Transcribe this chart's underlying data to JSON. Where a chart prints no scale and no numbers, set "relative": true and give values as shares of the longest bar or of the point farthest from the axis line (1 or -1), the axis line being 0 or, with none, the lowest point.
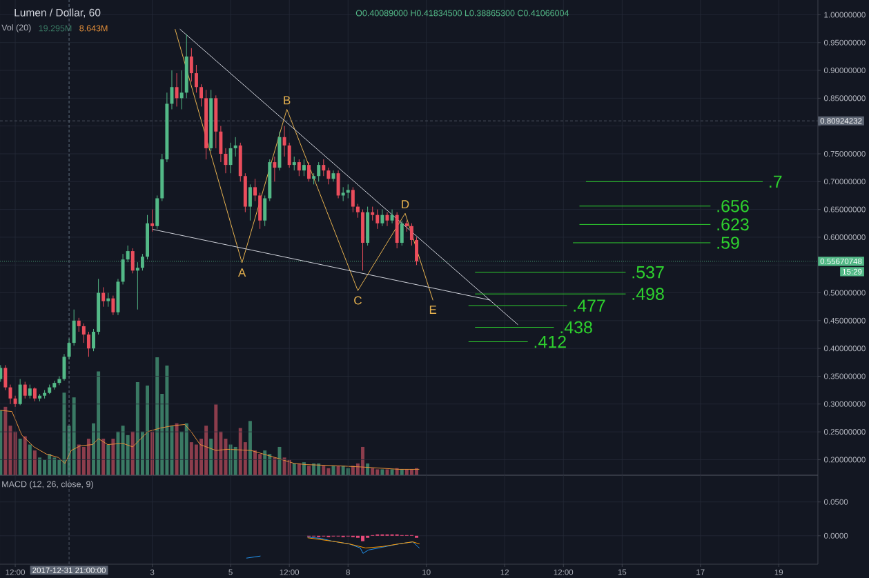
{
  "chart_data": [
    {
      "type": "candlestick",
      "title": "Lumen / Dollar, 60",
      "subtitle": "O0.40089000 H0.41834500 L0.38865300 C0.41066004",
      "x": [
        "2017-12-30T03:00",
        "2017-12-30T06:00",
        "2017-12-30T09:00",
        "2017-12-30T12:00",
        "2017-12-30T15:00",
        "2017-12-30T18:00",
        "2017-12-30T21:00",
        "2017-12-31T00:00",
        "2017-12-31T03:00",
        "2017-12-31T06:00",
        "2017-12-31T09:00",
        "2017-12-31T12:00",
        "2017-12-31T15:00",
        "2017-12-31T18:00",
        "2017-12-31T21:00",
        "2018-01-01T00:00",
        "2018-01-01T03:00",
        "2018-01-01T06:00",
        "2018-01-01T09:00",
        "2018-01-01T12:00",
        "2018-01-01T15:00",
        "2018-01-01T18:00",
        "2018-01-01T21:00",
        "2018-01-02T00:00",
        "2018-01-02T03:00",
        "2018-01-02T06:00",
        "2018-01-02T09:00",
        "2018-01-02T12:00",
        "2018-01-02T15:00",
        "2018-01-02T18:00",
        "2018-01-02T21:00",
        "2018-01-03T00:00",
        "2018-01-03T03:00",
        "2018-01-03T06:00",
        "2018-01-03T09:00",
        "2018-01-03T12:00",
        "2018-01-03T15:00",
        "2018-01-03T18:00",
        "2018-01-03T21:00",
        "2018-01-04T00:00",
        "2018-01-04T03:00",
        "2018-01-04T06:00",
        "2018-01-04T09:00",
        "2018-01-04T12:00",
        "2018-01-04T15:00",
        "2018-01-04T18:00",
        "2018-01-04T21:00",
        "2018-01-05T00:00",
        "2018-01-05T03:00",
        "2018-01-05T06:00",
        "2018-01-05T09:00",
        "2018-01-05T12:00",
        "2018-01-05T15:00",
        "2018-01-05T18:00",
        "2018-01-05T21:00",
        "2018-01-06T00:00",
        "2018-01-06T03:00",
        "2018-01-06T06:00",
        "2018-01-06T09:00",
        "2018-01-06T12:00",
        "2018-01-06T15:00",
        "2018-01-06T18:00",
        "2018-01-06T21:00",
        "2018-01-07T00:00",
        "2018-01-07T03:00",
        "2018-01-07T06:00",
        "2018-01-07T09:00",
        "2018-01-07T12:00",
        "2018-01-07T15:00",
        "2018-01-07T18:00",
        "2018-01-07T21:00",
        "2018-01-08T00:00",
        "2018-01-08T03:00",
        "2018-01-08T06:00",
        "2018-01-08T09:00",
        "2018-01-08T12:00",
        "2018-01-08T15:00",
        "2018-01-08T18:00",
        "2018-01-08T21:00",
        "2018-01-09T00:00",
        "2018-01-09T03:00",
        "2018-01-09T06:00",
        "2018-01-09T09:00",
        "2018-01-09T12:00",
        "2018-01-09T15:00",
        "2018-01-09T18:00"
      ],
      "ohlc": [
        [
          0.345,
          0.37,
          0.34,
          0.365
        ],
        [
          0.365,
          0.37,
          0.325,
          0.33
        ],
        [
          0.33,
          0.335,
          0.3,
          0.31
        ],
        [
          0.31,
          0.315,
          0.295,
          0.3
        ],
        [
          0.3,
          0.345,
          0.298,
          0.335
        ],
        [
          0.335,
          0.34,
          0.31,
          0.315
        ],
        [
          0.315,
          0.335,
          0.31,
          0.328
        ],
        [
          0.328,
          0.33,
          0.305,
          0.31
        ],
        [
          0.31,
          0.318,
          0.305,
          0.315
        ],
        [
          0.315,
          0.325,
          0.31,
          0.32
        ],
        [
          0.32,
          0.335,
          0.318,
          0.33
        ],
        [
          0.33,
          0.342,
          0.326,
          0.338
        ],
        [
          0.338,
          0.35,
          0.334,
          0.345
        ],
        [
          0.345,
          0.39,
          0.342,
          0.385
        ],
        [
          0.385,
          0.418,
          0.38,
          0.41
        ],
        [
          0.41,
          0.47,
          0.405,
          0.45
        ],
        [
          0.45,
          0.455,
          0.43,
          0.44
        ],
        [
          0.44,
          0.445,
          0.41,
          0.425
        ],
        [
          0.425,
          0.43,
          0.385,
          0.4
        ],
        [
          0.4,
          0.435,
          0.395,
          0.43
        ],
        [
          0.43,
          0.525,
          0.425,
          0.5
        ],
        [
          0.5,
          0.51,
          0.475,
          0.485
        ],
        [
          0.485,
          0.5,
          0.475,
          0.49
        ],
        [
          0.49,
          0.495,
          0.46,
          0.465
        ],
        [
          0.465,
          0.525,
          0.46,
          0.52
        ],
        [
          0.52,
          0.57,
          0.515,
          0.56
        ],
        [
          0.56,
          0.585,
          0.555,
          0.575
        ],
        [
          0.575,
          0.58,
          0.535,
          0.54
        ],
        [
          0.54,
          0.555,
          0.47,
          0.545
        ],
        [
          0.545,
          0.57,
          0.54,
          0.565
        ],
        [
          0.565,
          0.64,
          0.56,
          0.625
        ],
        [
          0.625,
          0.65,
          0.61,
          0.62
        ],
        [
          0.62,
          0.675,
          0.615,
          0.67
        ],
        [
          0.67,
          0.75,
          0.665,
          0.74
        ],
        [
          0.74,
          0.86,
          0.735,
          0.84
        ],
        [
          0.84,
          0.9,
          0.83,
          0.87
        ],
        [
          0.87,
          0.895,
          0.835,
          0.85
        ],
        [
          0.85,
          0.9,
          0.83,
          0.86
        ],
        [
          0.86,
          0.965,
          0.85,
          0.925
        ],
        [
          0.925,
          0.94,
          0.88,
          0.895
        ],
        [
          0.895,
          0.91,
          0.86,
          0.87
        ],
        [
          0.87,
          0.875,
          0.835,
          0.85
        ],
        [
          0.85,
          0.865,
          0.74,
          0.76
        ],
        [
          0.76,
          0.865,
          0.755,
          0.85
        ],
        [
          0.85,
          0.855,
          0.76,
          0.79
        ],
        [
          0.79,
          0.8,
          0.735,
          0.75
        ],
        [
          0.75,
          0.76,
          0.715,
          0.73
        ],
        [
          0.73,
          0.77,
          0.715,
          0.76
        ],
        [
          0.76,
          0.78,
          0.745,
          0.765
        ],
        [
          0.765,
          0.77,
          0.7,
          0.71
        ],
        [
          0.71,
          0.715,
          0.645,
          0.655
        ],
        [
          0.655,
          0.695,
          0.63,
          0.69
        ],
        [
          0.69,
          0.705,
          0.665,
          0.675
        ],
        [
          0.675,
          0.68,
          0.615,
          0.63
        ],
        [
          0.63,
          0.675,
          0.62,
          0.67
        ],
        [
          0.67,
          0.74,
          0.665,
          0.735
        ],
        [
          0.735,
          0.745,
          0.7,
          0.725
        ],
        [
          0.725,
          0.79,
          0.72,
          0.78
        ],
        [
          0.78,
          0.8,
          0.745,
          0.765
        ],
        [
          0.765,
          0.77,
          0.725,
          0.73
        ],
        [
          0.73,
          0.745,
          0.72,
          0.735
        ],
        [
          0.735,
          0.74,
          0.71,
          0.72
        ],
        [
          0.72,
          0.74,
          0.71,
          0.73
        ],
        [
          0.73,
          0.735,
          0.7,
          0.705
        ],
        [
          0.705,
          0.715,
          0.695,
          0.71
        ],
        [
          0.71,
          0.735,
          0.7,
          0.73
        ],
        [
          0.73,
          0.74,
          0.71,
          0.72
        ],
        [
          0.72,
          0.725,
          0.695,
          0.705
        ],
        [
          0.705,
          0.72,
          0.7,
          0.715
        ],
        [
          0.715,
          0.72,
          0.67,
          0.675
        ],
        [
          0.675,
          0.69,
          0.665,
          0.68
        ],
        [
          0.68,
          0.695,
          0.67,
          0.685
        ],
        [
          0.685,
          0.69,
          0.645,
          0.655
        ],
        [
          0.655,
          0.66,
          0.635,
          0.645
        ],
        [
          0.645,
          0.65,
          0.54,
          0.59
        ],
        [
          0.59,
          0.655,
          0.585,
          0.645
        ],
        [
          0.645,
          0.655,
          0.63,
          0.64
        ],
        [
          0.64,
          0.65,
          0.615,
          0.625
        ],
        [
          0.625,
          0.65,
          0.62,
          0.64
        ],
        [
          0.64,
          0.645,
          0.62,
          0.63
        ],
        [
          0.63,
          0.65,
          0.625,
          0.64
        ],
        [
          0.64,
          0.645,
          0.58,
          0.59
        ],
        [
          0.59,
          0.63,
          0.585,
          0.625
        ],
        [
          0.625,
          0.63,
          0.61,
          0.62
        ],
        [
          0.62,
          0.625,
          0.585,
          0.595
        ],
        [
          0.595,
          0.6,
          0.55,
          0.5567
        ]
      ],
      "colors": [
        "#53b987",
        "#eb4d5c",
        "#eb4d5c",
        "#eb4d5c",
        "#53b987",
        "#eb4d5c",
        "#53b987",
        "#eb4d5c",
        "#53b987",
        "#53b987",
        "#53b987",
        "#53b987",
        "#53b987",
        "#53b987",
        "#53b987",
        "#53b987",
        "#eb4d5c",
        "#eb4d5c",
        "#eb4d5c",
        "#53b987",
        "#53b987",
        "#eb4d5c",
        "#53b987",
        "#eb4d5c",
        "#53b987",
        "#53b987",
        "#53b987",
        "#eb4d5c",
        "#53b987",
        "#53b987",
        "#53b987",
        "#eb4d5c",
        "#53b987",
        "#53b987",
        "#53b987",
        "#53b987",
        "#eb4d5c",
        "#53b987",
        "#53b987",
        "#eb4d5c",
        "#eb4d5c",
        "#eb4d5c",
        "#eb4d5c",
        "#53b987",
        "#eb4d5c",
        "#eb4d5c",
        "#eb4d5c",
        "#53b987",
        "#53b987",
        "#eb4d5c",
        "#eb4d5c",
        "#53b987",
        "#eb4d5c",
        "#eb4d5c",
        "#53b987",
        "#53b987",
        "#eb4d5c",
        "#53b987",
        "#eb4d5c",
        "#eb4d5c",
        "#53b987",
        "#eb4d5c",
        "#53b987",
        "#eb4d5c",
        "#53b987",
        "#53b987",
        "#eb4d5c",
        "#eb4d5c",
        "#53b987",
        "#eb4d5c",
        "#53b987",
        "#53b987",
        "#eb4d5c",
        "#eb4d5c",
        "#eb4d5c",
        "#53b987",
        "#eb4d5c",
        "#eb4d5c",
        "#53b987",
        "#eb4d5c",
        "#53b987",
        "#eb4d5c",
        "#53b987",
        "#eb4d5c",
        "#eb4d5c",
        "#eb4d5c"
      ],
      "xlim": [
        "2017-12-30T02:40",
        "2018-01-20T00:00"
      ],
      "xticks": [
        {
          "value": "2017-12-30T12:00",
          "label": null
        },
        {
          "value": "2018-01-03",
          "label": null
        },
        {
          "value": "2018-01-05",
          "label": null
        },
        {
          "value": "2018-01-06T12:00",
          "label": null
        },
        {
          "value": "2018-01-08",
          "label": null
        },
        {
          "value": "2018-01-10",
          "label": null
        },
        {
          "value": "2018-01-12",
          "label": null
        },
        {
          "value": "2018-01-13T12:00",
          "label": null
        },
        {
          "value": "2018-01-15",
          "label": null
        },
        {
          "value": "2018-01-17",
          "label": null
        },
        {
          "value": "2018-01-19",
          "label": null
        }
      ],
      "ylim": [
        0.172,
        1.0266
      ],
      "yticks": [
        {
          "value": 0.2,
          "label": "0.20000000"
        },
        {
          "value": 0.25,
          "label": "0.25000000"
        },
        {
          "value": 0.3,
          "label": "0.30000000"
        },
        {
          "value": 0.35,
          "label": "0.35000000"
        },
        {
          "value": 0.4,
          "label": "0.40000000"
        },
        {
          "value": 0.45,
          "label": "0.45000000"
        },
        {
          "value": 0.5,
          "label": "0.50000000"
        },
        {
          "value": 0.55,
          "label": null
        },
        {
          "value": 0.6,
          "label": "0.60000000"
        },
        {
          "value": 0.65,
          "label": "0.65000000"
        },
        {
          "value": 0.7,
          "label": "0.70000000"
        },
        {
          "value": 0.75,
          "label": "0.75000000"
        },
        {
          "value": 0.8,
          "label": null
        },
        {
          "value": 0.85,
          "label": "0.85000000"
        },
        {
          "value": 0.9,
          "label": "0.90000000"
        },
        {
          "value": 0.95,
          "label": "0.95000000"
        },
        {
          "value": 1,
          "label": "1.00000000"
        }
      ],
      "tick_labels": "y",
      "grid": true,
      "series": [
        {
          "type": "line",
          "x": [
            "2018-01-03T14:00",
            "2018-01-05T07:00",
            "2018-01-06T10:30",
            "2018-01-08T06:00",
            "2018-01-09T11:00",
            "2018-01-10T04:00"
          ],
          "values": [
            0.974,
            0.554,
            0.83,
            0.504,
            0.643,
            0.487
          ],
          "color": "#e8b34f"
        },
        {
          "type": "line",
          "x": [
            "2018-01-03T17:00",
            "2018-01-12T08:00"
          ],
          "values": [
            0.974,
            0.443
          ],
          "color": "#d1d4dc"
        },
        {
          "type": "line",
          "x": [
            "2018-01-03T00:30",
            "2018-01-11T15:00"
          ],
          "values": [
            0.614,
            0.487
          ],
          "color": "#d1d4dc"
        },
        {
          "type": "line",
          "name": ".7",
          "x": [
            "2018-01-14T02:00",
            "2018-01-18T14:00"
          ],
          "values": [
            0.7,
            0.7
          ],
          "color": "#2ed12e"
        },
        {
          "type": "line",
          "name": ".656",
          "x": [
            "2018-01-13T22:00",
            "2018-01-17T06:00"
          ],
          "values": [
            0.656,
            0.656
          ],
          "color": "#2ed12e"
        },
        {
          "type": "line",
          "name": ".623",
          "x": [
            "2018-01-13T22:00",
            "2018-01-17T06:00"
          ],
          "values": [
            0.623,
            0.623
          ],
          "color": "#2ed12e"
        },
        {
          "type": "line",
          "name": ".59",
          "x": [
            "2018-01-13T18:00",
            "2018-01-17T06:00"
          ],
          "values": [
            0.59,
            0.59
          ],
          "color": "#2ed12e"
        },
        {
          "type": "line",
          "name": ".537",
          "x": [
            "2018-01-11T06:00",
            "2018-01-15T02:00"
          ],
          "values": [
            0.537,
            0.537
          ],
          "color": "#2ed12e"
        },
        {
          "type": "line",
          "name": ".498",
          "x": [
            "2018-01-11T06:00",
            "2018-01-15T02:00"
          ],
          "values": [
            0.498,
            0.498
          ],
          "color": "#2ed12e"
        },
        {
          "type": "line",
          "name": ".477",
          "x": [
            "2018-01-11T02:00",
            "2018-01-13T14:00"
          ],
          "values": [
            0.477,
            0.477
          ],
          "color": "#2ed12e"
        },
        {
          "type": "line",
          "name": ".438",
          "x": [
            "2018-01-11T06:00",
            "2018-01-13T06:00"
          ],
          "values": [
            0.438,
            0.438
          ],
          "color": "#2ed12e"
        },
        {
          "type": "line",
          "name": ".412",
          "x": [
            "2018-01-11T02:00",
            "2018-01-12T14:00"
          ],
          "values": [
            0.412,
            0.412
          ],
          "color": "#2ed12e"
        }
      ],
      "ref_lines": [
        {
          "axis": "x",
          "value": "2017-12-31T21:00",
          "color": "#758696",
          "line_style": "dashed"
        },
        {
          "axis": "y",
          "value": 0.80924232,
          "label": "0.80924232",
          "color": "#5d6573",
          "line_style": "dashed"
        },
        {
          "axis": "y",
          "value": 0.55670748,
          "label": "0.55670748",
          "color": "#53b987",
          "line_style": "dotted"
        }
      ],
      "annotations": [
        {
          "text": "A",
          "x": "2018-01-05T07:00",
          "y": 0.554
        },
        {
          "text": "B",
          "x": "2018-01-06T10:30",
          "y": 0.83
        },
        {
          "text": "C",
          "x": "2018-01-08T06:00",
          "y": 0.504
        },
        {
          "text": "D",
          "x": "2018-01-09T11:00",
          "y": 0.643
        },
        {
          "text": "E",
          "x": "2018-01-10T04:00",
          "y": 0.487
        },
        "15:29"
      ]
    },
    {
      "type": "bar",
      "title": "Vol (20)",
      "relative": true,
      "xlim": [
        "2017-12-30T02:40",
        "2018-01-20T00:00"
      ],
      "tick_labels": false,
      "x": [
        "2017-12-30T03:00",
        "2017-12-30T06:00",
        "2017-12-30T09:00",
        "2017-12-30T12:00",
        "2017-12-30T15:00",
        "2017-12-30T18:00",
        "2017-12-30T21:00",
        "2017-12-31T00:00",
        "2017-12-31T03:00",
        "2017-12-31T06:00",
        "2017-12-31T09:00",
        "2017-12-31T12:00",
        "2017-12-31T15:00",
        "2017-12-31T18:00",
        "2017-12-31T21:00",
        "2018-01-01T00:00",
        "2018-01-01T03:00",
        "2018-01-01T06:00",
        "2018-01-01T09:00",
        "2018-01-01T12:00",
        "2018-01-01T15:00",
        "2018-01-01T18:00",
        "2018-01-01T21:00",
        "2018-01-02T00:00",
        "2018-01-02T03:00",
        "2018-01-02T06:00",
        "2018-01-02T09:00",
        "2018-01-02T12:00",
        "2018-01-02T15:00",
        "2018-01-02T18:00",
        "2018-01-02T21:00",
        "2018-01-03T00:00",
        "2018-01-03T03:00",
        "2018-01-03T06:00",
        "2018-01-03T09:00",
        "2018-01-03T12:00",
        "2018-01-03T15:00",
        "2018-01-03T18:00",
        "2018-01-03T21:00",
        "2018-01-04T00:00",
        "2018-01-04T03:00",
        "2018-01-04T06:00",
        "2018-01-04T09:00",
        "2018-01-04T12:00",
        "2018-01-04T15:00",
        "2018-01-04T18:00",
        "2018-01-04T21:00",
        "2018-01-05T00:00",
        "2018-01-05T03:00",
        "2018-01-05T06:00",
        "2018-01-05T09:00",
        "2018-01-05T12:00",
        "2018-01-05T15:00",
        "2018-01-05T18:00",
        "2018-01-05T21:00",
        "2018-01-06T00:00",
        "2018-01-06T03:00",
        "2018-01-06T06:00",
        "2018-01-06T09:00",
        "2018-01-06T12:00",
        "2018-01-06T15:00",
        "2018-01-06T18:00",
        "2018-01-06T21:00",
        "2018-01-07T00:00",
        "2018-01-07T03:00",
        "2018-01-07T06:00",
        "2018-01-07T09:00",
        "2018-01-07T12:00",
        "2018-01-07T15:00",
        "2018-01-07T18:00",
        "2018-01-07T21:00",
        "2018-01-08T00:00",
        "2018-01-08T03:00",
        "2018-01-08T06:00",
        "2018-01-08T09:00",
        "2018-01-08T12:00",
        "2018-01-08T15:00",
        "2018-01-08T18:00",
        "2018-01-08T21:00",
        "2018-01-09T00:00",
        "2018-01-09T03:00",
        "2018-01-09T06:00",
        "2018-01-09T09:00",
        "2018-01-09T12:00",
        "2018-01-09T15:00",
        "2018-01-09T18:00"
      ],
      "series": [
        {
          "values": [
            0.55,
            0.58,
            0.42,
            0.37,
            0.31,
            0.33,
            0.26,
            0.21,
            0.15,
            0.13,
            0.18,
            0.15,
            0.13,
            0.7,
            0.42,
            0.66,
            0.26,
            0.24,
            0.31,
            0.44,
            0.88,
            0.31,
            0.26,
            0.31,
            0.37,
            0.42,
            0.34,
            0.37,
            0.79,
            0.37,
            0.76,
            0.37,
            1,
            0.69,
            0.93,
            0.42,
            0.44,
            0.37,
            0.44,
            0.28,
            0.26,
            0.31,
            0.42,
            0.31,
            0.6,
            0.37,
            0.31,
            0.26,
            0.24,
            0.4,
            0.28,
            0.46,
            0.21,
            0.18,
            0.21,
            0.18,
            0.15,
            0.24,
            0.15,
            0.13,
            0.1,
            0.1,
            0.11,
            0.08,
            0.1,
            0.1,
            0.08,
            0.06,
            0.08,
            0.08,
            0.08,
            0.06,
            0.08,
            0.1,
            0.24,
            0.1,
            0.06,
            0.05,
            0.05,
            0.05,
            0.05,
            0.06,
            0.05,
            0.05,
            0.05,
            0.06
          ],
          "colors": [
            "#3a7a64",
            "#8c3d4c",
            "#8c3d4c",
            "#8c3d4c",
            "#3a7a64",
            "#8c3d4c",
            "#3a7a64",
            "#8c3d4c",
            "#3a7a64",
            "#3a7a64",
            "#3a7a64",
            "#3a7a64",
            "#3a7a64",
            "#3a7a64",
            "#3a7a64",
            "#3a7a64",
            "#8c3d4c",
            "#8c3d4c",
            "#8c3d4c",
            "#3a7a64",
            "#3a7a64",
            "#8c3d4c",
            "#3a7a64",
            "#8c3d4c",
            "#3a7a64",
            "#3a7a64",
            "#3a7a64",
            "#8c3d4c",
            "#3a7a64",
            "#3a7a64",
            "#3a7a64",
            "#8c3d4c",
            "#3a7a64",
            "#3a7a64",
            "#3a7a64",
            "#3a7a64",
            "#8c3d4c",
            "#3a7a64",
            "#3a7a64",
            "#8c3d4c",
            "#8c3d4c",
            "#8c3d4c",
            "#8c3d4c",
            "#3a7a64",
            "#8c3d4c",
            "#8c3d4c",
            "#8c3d4c",
            "#3a7a64",
            "#3a7a64",
            "#8c3d4c",
            "#8c3d4c",
            "#3a7a64",
            "#8c3d4c",
            "#8c3d4c",
            "#3a7a64",
            "#3a7a64",
            "#8c3d4c",
            "#3a7a64",
            "#8c3d4c",
            "#8c3d4c",
            "#3a7a64",
            "#8c3d4c",
            "#3a7a64",
            "#8c3d4c",
            "#3a7a64",
            "#3a7a64",
            "#8c3d4c",
            "#8c3d4c",
            "#3a7a64",
            "#8c3d4c",
            "#3a7a64",
            "#3a7a64",
            "#8c3d4c",
            "#8c3d4c",
            "#8c3d4c",
            "#3a7a64",
            "#8c3d4c",
            "#8c3d4c",
            "#3a7a64",
            "#8c3d4c",
            "#3a7a64",
            "#8c3d4c",
            "#3a7a64",
            "#8c3d4c",
            "#8c3d4c",
            "#8c3d4c"
          ]
        },
        {
          "type": "line",
          "x": [
            "2017-12-30T03:00",
            "2017-12-30T10:00",
            "2017-12-30T16:00",
            "2017-12-30T23:30",
            "2017-12-31T07:00",
            "2017-12-31T14:30",
            "2017-12-31T18:30",
            "2017-12-31T22:20",
            "2018-01-01T04:00",
            "2018-01-01T11:30",
            "2018-01-01T15:00",
            "2018-01-01T20:40",
            "2018-01-02T06:00",
            "2018-01-02T12:00",
            "2018-01-02T21:20",
            "2018-01-03T05:00",
            "2018-01-03T12:30",
            "2018-01-03T20:00",
            "2018-01-03T23:45",
            "2018-01-04T05:20",
            "2018-01-04T15:00",
            "2018-01-04T22:20",
            "2018-01-05T12:30",
            "2018-01-06T03:20",
            "2018-01-06T15:00",
            "2018-01-06T22:20",
            "2018-01-07T17:20",
            "2018-01-08T08:10",
            "2018-01-09T07:10",
            "2018-01-09T19:30"
          ],
          "values": [
            0.55,
            0.54,
            0.34,
            0.24,
            0.18,
            0.15,
            0.1,
            0.21,
            0.25,
            0.26,
            0.31,
            0.26,
            0.27,
            0.24,
            0.37,
            0.4,
            0.42,
            0.43,
            0.37,
            0.26,
            0.21,
            0.22,
            0.21,
            0.15,
            0.1,
            0.09,
            0.08,
            0.07,
            0.05,
            0.05
          ],
          "color": "#e8913a"
        }
      ],
      "annotations": [
        "19.295M",
        "8.643M"
      ]
    },
    {
      "type": "line",
      "title": "MACD (12, 26, close, 9)",
      "xlim": [
        "2017-12-30T02:40",
        "2018-01-20T00:00"
      ],
      "xticks": [
        {
          "value": "2017-12-30T12:00",
          "label": "12:00"
        },
        {
          "value": "2018-01-03",
          "label": "3"
        },
        {
          "value": "2018-01-05",
          "label": "5"
        },
        {
          "value": "2018-01-06T12:00",
          "label": "12:00"
        },
        {
          "value": "2018-01-08",
          "label": "8"
        },
        {
          "value": "2018-01-10",
          "label": "10"
        },
        {
          "value": "2018-01-12",
          "label": "12"
        },
        {
          "value": "2018-01-13T12:00",
          "label": "12:00"
        },
        {
          "value": "2018-01-15",
          "label": "15"
        },
        {
          "value": "2018-01-17",
          "label": "17"
        },
        {
          "value": "2018-01-19",
          "label": "19"
        }
      ],
      "ylim": [
        -0.042,
        0.0895
      ],
      "yticks": [
        {
          "value": 0.05,
          "label": "0.0500"
        },
        {
          "value": 0,
          "label": "0.0000"
        }
      ],
      "grid": true,
      "series": [
        {
          "type": "bar",
          "x": [
            "2018-01-07T00:00",
            "2018-01-07T03:00",
            "2018-01-07T06:00",
            "2018-01-07T09:00",
            "2018-01-07T12:00",
            "2018-01-07T15:00",
            "2018-01-07T18:00",
            "2018-01-07T21:00",
            "2018-01-08T00:00",
            "2018-01-08T03:00",
            "2018-01-08T06:00",
            "2018-01-08T09:00",
            "2018-01-08T12:00",
            "2018-01-08T15:00",
            "2018-01-08T18:00",
            "2018-01-08T21:00",
            "2018-01-09T00:00",
            "2018-01-09T03:00",
            "2018-01-09T06:00",
            "2018-01-09T09:00",
            "2018-01-09T12:00",
            "2018-01-09T15:00",
            "2018-01-09T18:00"
          ],
          "values": [
            -0.001,
            -0.001,
            -0.002,
            -0.001,
            -0.002,
            -0.001,
            -0.001,
            -0.002,
            -0.001,
            -0.002,
            -0.003,
            -0.008,
            -0.003,
            0.001,
            0.002,
            0.002,
            0.002,
            0.002,
            0.002,
            0.001,
            0.001,
            0.001,
            -0.003
          ],
          "color": "#e84a7a"
        },
        {
          "x": [
            "2018-01-05T09:50",
            "2018-01-05T18:10",
            "2018-01-06T09:40",
            "2018-01-06T23:20",
            "2018-01-07T07:40",
            "2018-01-07T14:20",
            "2018-01-08T00:40",
            "2018-01-08T07:30",
            "2018-01-08T09:10",
            "2018-01-08T12:30",
            "2018-01-08T20:50",
            "2018-01-09T07:10",
            "2018-01-09T15:40",
            "2018-01-09T19:40"
          ],
          "values": [
            -0.033,
            -0.03,
            null,
            -0.002,
            -0.004,
            -0.008,
            -0.012,
            -0.018,
            -0.026,
            -0.021,
            -0.017,
            -0.012,
            -0.009,
            -0.018
          ],
          "color": "#2196f3"
        },
        {
          "x": [
            "2018-01-06T23:20",
            "2018-01-07T14:20",
            "2018-01-08T00:40",
            "2018-01-08T10:50",
            "2018-01-08T20:50",
            "2018-01-09T07:10",
            "2018-01-09T15:40",
            "2018-01-09T19:40"
          ],
          "values": [
            -0.003,
            -0.008,
            -0.012,
            -0.018,
            -0.016,
            -0.012,
            -0.009,
            -0.012
          ],
          "color": "#ff9800"
        }
      ],
      "ref_lines": [
        {
          "axis": "x",
          "value": "2017-12-31T21:00",
          "label": "2017-12-31 21:00:00",
          "color": "#5d6573",
          "line_style": "dashed"
        }
      ]
    }
  ]
}
